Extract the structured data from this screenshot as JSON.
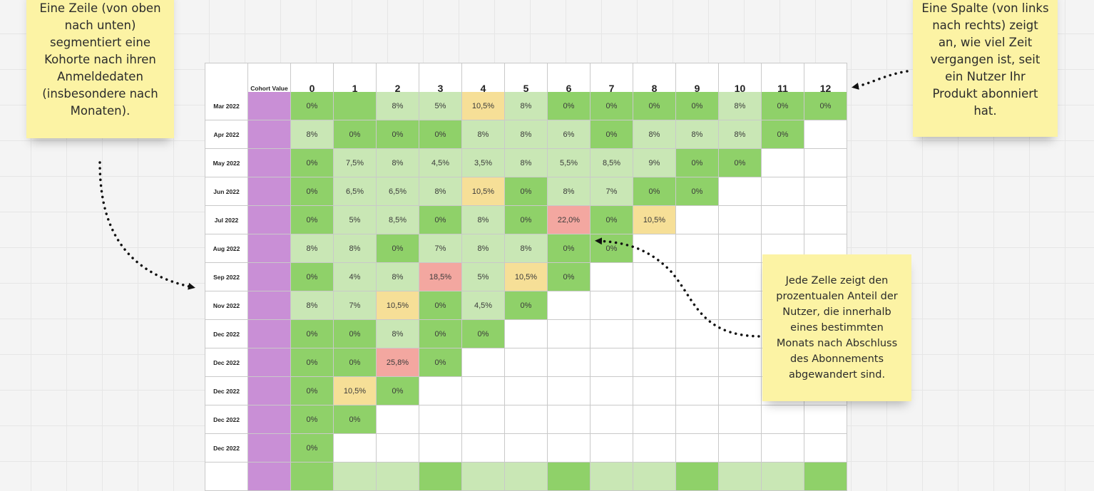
{
  "notes": {
    "left": "Eine Zeile (von oben nach unten) segmentiert eine Kohorte nach ihren Anmeldedaten (insbesondere nach Monaten).",
    "right": "Eine Spalte (von links nach rechts) zeigt an, wie viel Zeit vergangen ist, seit ein Nutzer Ihr Produkt abonniert hat.",
    "cell": "Jede Zelle zeigt den prozentualen Anteil der Nutzer, die innerhalb eines bestimmten Monats nach Abschluss des Abonnements abgewandert sind."
  },
  "table": {
    "cohort_value_header": "Cohort Value",
    "columns": [
      "0",
      "1",
      "2",
      "3",
      "4",
      "5",
      "6",
      "7",
      "8",
      "9",
      "10",
      "11",
      "12"
    ],
    "rows": [
      {
        "label": "Mar 2022",
        "cells": [
          [
            "0%",
            "d"
          ],
          [
            "",
            "d"
          ],
          [
            "8%",
            "l"
          ],
          [
            "5%",
            "l"
          ],
          [
            "10,5%",
            "y"
          ],
          [
            "8%",
            "l"
          ],
          [
            "0%",
            "d"
          ],
          [
            "0%",
            "d"
          ],
          [
            "0%",
            "d"
          ],
          [
            "0%",
            "d"
          ],
          [
            "8%",
            "l"
          ],
          [
            "0%",
            "d"
          ],
          [
            "0%",
            "d"
          ]
        ]
      },
      {
        "label": "Apr 2022",
        "cells": [
          [
            "8%",
            "l"
          ],
          [
            "0%",
            "d"
          ],
          [
            "0%",
            "d"
          ],
          [
            "0%",
            "d"
          ],
          [
            "8%",
            "l"
          ],
          [
            "8%",
            "l"
          ],
          [
            "6%",
            "l"
          ],
          [
            "0%",
            "d"
          ],
          [
            "8%",
            "l"
          ],
          [
            "8%",
            "l"
          ],
          [
            "8%",
            "l"
          ],
          [
            "0%",
            "d"
          ],
          [
            "",
            "e"
          ]
        ]
      },
      {
        "label": "May 2022",
        "cells": [
          [
            "0%",
            "d"
          ],
          [
            "7,5%",
            "l"
          ],
          [
            "8%",
            "l"
          ],
          [
            "4,5%",
            "l"
          ],
          [
            "3,5%",
            "l"
          ],
          [
            "8%",
            "l"
          ],
          [
            "5,5%",
            "l"
          ],
          [
            "8,5%",
            "l"
          ],
          [
            "9%",
            "l"
          ],
          [
            "0%",
            "d"
          ],
          [
            "0%",
            "d"
          ],
          [
            "",
            "e"
          ],
          [
            "",
            "e"
          ]
        ]
      },
      {
        "label": "Jun 2022",
        "cells": [
          [
            "0%",
            "d"
          ],
          [
            "6,5%",
            "l"
          ],
          [
            "6,5%",
            "l"
          ],
          [
            "8%",
            "l"
          ],
          [
            "10,5%",
            "y"
          ],
          [
            "0%",
            "d"
          ],
          [
            "8%",
            "l"
          ],
          [
            "7%",
            "l"
          ],
          [
            "0%",
            "d"
          ],
          [
            "0%",
            "d"
          ],
          [
            "",
            "e"
          ],
          [
            "",
            "e"
          ],
          [
            "",
            "e"
          ]
        ]
      },
      {
        "label": "Jul 2022",
        "cells": [
          [
            "0%",
            "d"
          ],
          [
            "5%",
            "l"
          ],
          [
            "8,5%",
            "l"
          ],
          [
            "0%",
            "d"
          ],
          [
            "8%",
            "l"
          ],
          [
            "0%",
            "d"
          ],
          [
            "22,0%",
            "r"
          ],
          [
            "0%",
            "d"
          ],
          [
            "10,5%",
            "y"
          ],
          [
            "",
            "e"
          ],
          [
            "",
            "e"
          ],
          [
            "",
            "e"
          ],
          [
            "",
            "e"
          ]
        ]
      },
      {
        "label": "Aug 2022",
        "cells": [
          [
            "8%",
            "l"
          ],
          [
            "8%",
            "l"
          ],
          [
            "0%",
            "d"
          ],
          [
            "7%",
            "l"
          ],
          [
            "8%",
            "l"
          ],
          [
            "8%",
            "l"
          ],
          [
            "0%",
            "d"
          ],
          [
            "0%",
            "d"
          ],
          [
            "",
            "e"
          ],
          [
            "",
            "e"
          ],
          [
            "",
            "e"
          ],
          [
            "",
            "e"
          ],
          [
            "",
            "e"
          ]
        ]
      },
      {
        "label": "Sep 2022",
        "cells": [
          [
            "0%",
            "d"
          ],
          [
            "4%",
            "l"
          ],
          [
            "8%",
            "l"
          ],
          [
            "18,5%",
            "r"
          ],
          [
            "5%",
            "l"
          ],
          [
            "10,5%",
            "y"
          ],
          [
            "0%",
            "d"
          ],
          [
            "",
            "e"
          ],
          [
            "",
            "e"
          ],
          [
            "",
            "e"
          ],
          [
            "",
            "e"
          ],
          [
            "",
            "e"
          ],
          [
            "",
            "e"
          ]
        ]
      },
      {
        "label": "Nov 2022",
        "cells": [
          [
            "8%",
            "l"
          ],
          [
            "7%",
            "l"
          ],
          [
            "10,5%",
            "y"
          ],
          [
            "0%",
            "d"
          ],
          [
            "4,5%",
            "l"
          ],
          [
            "0%",
            "d"
          ],
          [
            "",
            "e"
          ],
          [
            "",
            "e"
          ],
          [
            "",
            "e"
          ],
          [
            "",
            "e"
          ],
          [
            "",
            "e"
          ],
          [
            "",
            "e"
          ],
          [
            "",
            "e"
          ]
        ]
      },
      {
        "label": "Dec 2022",
        "cells": [
          [
            "0%",
            "d"
          ],
          [
            "0%",
            "d"
          ],
          [
            "8%",
            "l"
          ],
          [
            "0%",
            "d"
          ],
          [
            "0%",
            "d"
          ],
          [
            "",
            "e"
          ],
          [
            "",
            "e"
          ],
          [
            "",
            "e"
          ],
          [
            "",
            "e"
          ],
          [
            "",
            "e"
          ],
          [
            "",
            "e"
          ],
          [
            "",
            "e"
          ],
          [
            "",
            "e"
          ]
        ]
      },
      {
        "label": "Dec 2022",
        "cells": [
          [
            "0%",
            "d"
          ],
          [
            "0%",
            "d"
          ],
          [
            "25,8%",
            "r"
          ],
          [
            "0%",
            "d"
          ],
          [
            "",
            "e"
          ],
          [
            "",
            "e"
          ],
          [
            "",
            "e"
          ],
          [
            "",
            "e"
          ],
          [
            "",
            "e"
          ],
          [
            "",
            "e"
          ],
          [
            "",
            "e"
          ],
          [
            "",
            "e"
          ],
          [
            "",
            "e"
          ]
        ]
      },
      {
        "label": "Dec 2022",
        "cells": [
          [
            "0%",
            "d"
          ],
          [
            "10,5%",
            "y"
          ],
          [
            "0%",
            "d"
          ],
          [
            "",
            "e"
          ],
          [
            "",
            "e"
          ],
          [
            "",
            "e"
          ],
          [
            "",
            "e"
          ],
          [
            "",
            "e"
          ],
          [
            "",
            "e"
          ],
          [
            "",
            "e"
          ],
          [
            "",
            "e"
          ],
          [
            "",
            "e"
          ],
          [
            "",
            "e"
          ]
        ]
      },
      {
        "label": "Dec 2022",
        "cells": [
          [
            "0%",
            "d"
          ],
          [
            "0%",
            "d"
          ],
          [
            "",
            "e"
          ],
          [
            "",
            "e"
          ],
          [
            "",
            "e"
          ],
          [
            "",
            "e"
          ],
          [
            "",
            "e"
          ],
          [
            "",
            "e"
          ],
          [
            "",
            "e"
          ],
          [
            "",
            "e"
          ],
          [
            "",
            "e"
          ],
          [
            "",
            "e"
          ],
          [
            "",
            "e"
          ]
        ]
      },
      {
        "label": "Dec 2022",
        "cells": [
          [
            "0%",
            "d"
          ],
          [
            "",
            "e"
          ],
          [
            "",
            "e"
          ],
          [
            "",
            "e"
          ],
          [
            "",
            "e"
          ],
          [
            "",
            "e"
          ],
          [
            "",
            "e"
          ],
          [
            "",
            "e"
          ],
          [
            "",
            "e"
          ],
          [
            "",
            "e"
          ],
          [
            "",
            "e"
          ],
          [
            "",
            "e"
          ],
          [
            "",
            "e"
          ]
        ]
      },
      {
        "label": "",
        "cells": [
          [
            "",
            "d"
          ],
          [
            "",
            "l"
          ],
          [
            "",
            "l"
          ],
          [
            "",
            "d"
          ],
          [
            "",
            "l"
          ],
          [
            "",
            "l"
          ],
          [
            "",
            "d"
          ],
          [
            "",
            "l"
          ],
          [
            "",
            "l"
          ],
          [
            "",
            "d"
          ],
          [
            "",
            "l"
          ],
          [
            "",
            "l"
          ],
          [
            "",
            "d"
          ]
        ]
      }
    ]
  }
}
